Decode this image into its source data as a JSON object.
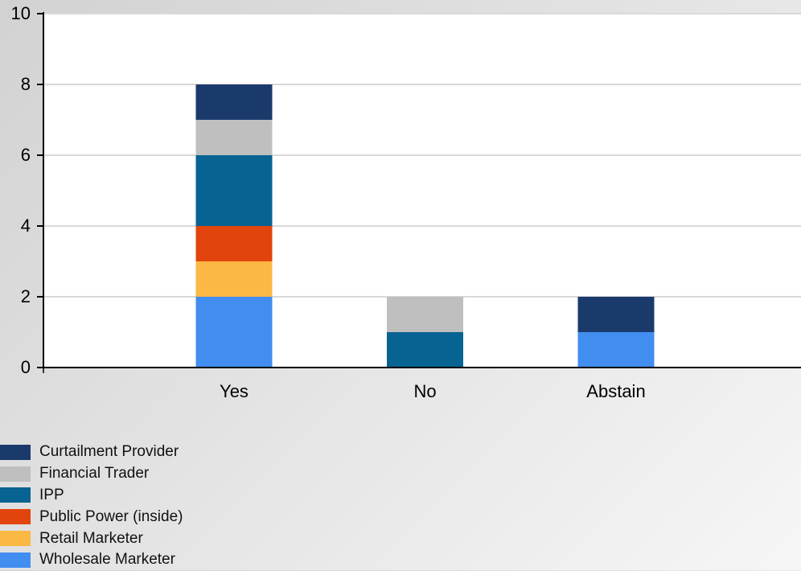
{
  "chart_data": {
    "type": "bar",
    "stacked": true,
    "categories": [
      "Yes",
      "No",
      "Abstain"
    ],
    "series": [
      {
        "name": "Wholesale Marketer",
        "color": "#428df0",
        "values": [
          2,
          0,
          1
        ]
      },
      {
        "name": "Retail Marketer",
        "color": "#fbb844",
        "values": [
          1,
          0,
          0
        ]
      },
      {
        "name": "Public Power (inside)",
        "color": "#e1450d",
        "values": [
          1,
          0,
          0
        ]
      },
      {
        "name": "IPP",
        "color": "#076391",
        "values": [
          2,
          1,
          0
        ]
      },
      {
        "name": "Financial Trader",
        "color": "#bfbfbf",
        "values": [
          1,
          1,
          0
        ]
      },
      {
        "name": "Curtailment Provider",
        "color": "#1b3a6c",
        "values": [
          1,
          0,
          1
        ]
      }
    ],
    "yticks": [
      "0",
      "2",
      "4",
      "6",
      "8",
      "10"
    ],
    "ylim": [
      0,
      10
    ],
    "grid": true,
    "legend_position": "bottom-left",
    "legend_order": [
      "Curtailment Provider",
      "Financial Trader",
      "IPP",
      "Public Power (inside)",
      "Retail Marketer",
      "Wholesale Marketer"
    ]
  }
}
